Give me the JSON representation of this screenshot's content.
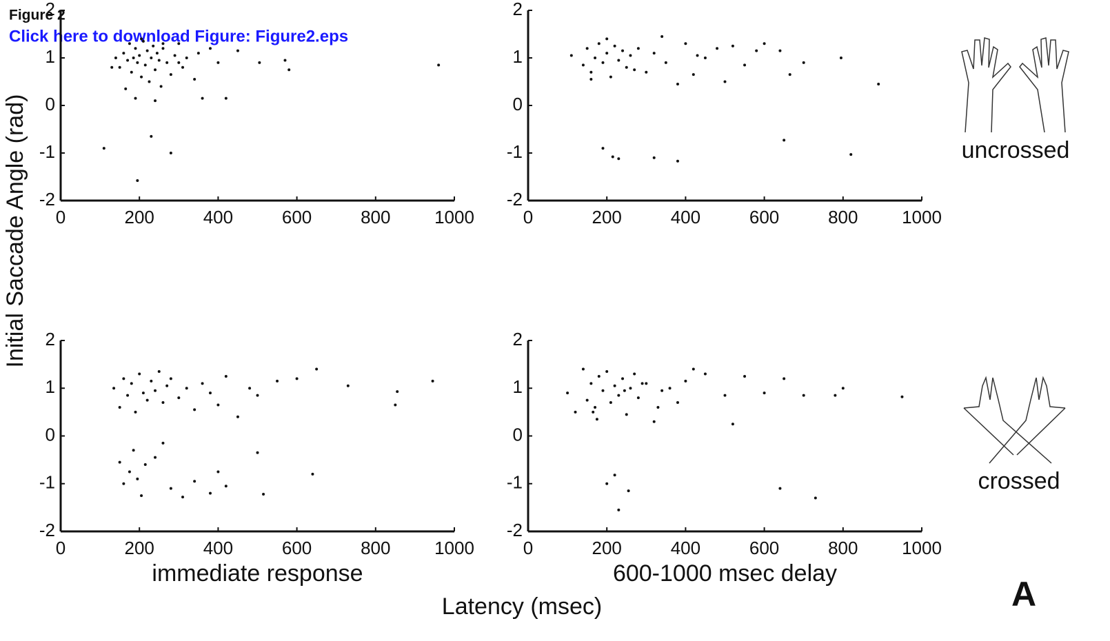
{
  "header": {
    "figure": "Figure 2",
    "link": "Click here to download Figure: Figure2.eps"
  },
  "ylabel": "Initial Saccade Angle (rad)",
  "xlabel": "Latency (msec)",
  "row_labels": [
    "uncrossed",
    "crossed"
  ],
  "panel_letter": "A",
  "chart_data": [
    {
      "type": "scatter",
      "color": "#111111",
      "xlim": [
        0,
        1000
      ],
      "ylim": [
        -2,
        2
      ],
      "xticks": [
        0,
        200,
        400,
        600,
        800,
        1000
      ],
      "yticks": [
        -2,
        -1,
        0,
        1,
        2
      ],
      "x": [
        150,
        160,
        170,
        175,
        180,
        185,
        190,
        195,
        200,
        205,
        210,
        215,
        220,
        225,
        230,
        235,
        240,
        245,
        250,
        255,
        260,
        270,
        280,
        290,
        300,
        310,
        320,
        340,
        360,
        380,
        400,
        420,
        450,
        505,
        570,
        580,
        960,
        110,
        195,
        230,
        280,
        240,
        190,
        130,
        140,
        165,
        205,
        260,
        300,
        350
      ],
      "values": [
        0.8,
        1.1,
        0.95,
        1.3,
        0.7,
        1.0,
        1.2,
        0.9,
        1.05,
        0.6,
        1.35,
        0.85,
        1.15,
        0.5,
        1.0,
        1.25,
        0.75,
        1.1,
        0.95,
        0.4,
        1.2,
        0.9,
        0.65,
        1.05,
        1.3,
        0.8,
        1.0,
        0.55,
        0.15,
        1.2,
        0.9,
        0.15,
        1.15,
        0.9,
        0.95,
        0.75,
        0.85,
        -0.9,
        -1.58,
        -0.65,
        -1.0,
        0.1,
        0.15,
        0.8,
        1.0,
        0.35,
        1.4,
        1.3,
        0.9,
        1.1
      ]
    },
    {
      "type": "scatter",
      "color": "#111111",
      "xlim": [
        0,
        1000
      ],
      "ylim": [
        -2,
        2
      ],
      "xticks": [
        0,
        200,
        400,
        600,
        800,
        1000
      ],
      "yticks": [
        -2,
        -1,
        0,
        1,
        2
      ],
      "x": [
        110,
        140,
        150,
        160,
        170,
        180,
        190,
        200,
        210,
        220,
        230,
        240,
        250,
        260,
        280,
        300,
        320,
        350,
        380,
        400,
        420,
        450,
        480,
        500,
        550,
        600,
        640,
        665,
        700,
        795,
        890,
        820,
        650,
        380,
        320,
        230,
        215,
        190,
        160,
        200,
        270,
        340,
        430,
        520,
        580
      ],
      "values": [
        1.05,
        0.85,
        1.2,
        0.7,
        1.0,
        1.3,
        0.9,
        1.1,
        0.6,
        1.25,
        0.95,
        1.15,
        0.8,
        1.05,
        1.2,
        0.7,
        1.1,
        0.9,
        0.45,
        1.3,
        0.65,
        1.0,
        1.2,
        0.5,
        0.85,
        1.3,
        1.15,
        0.65,
        0.9,
        1.0,
        0.45,
        -1.03,
        -0.73,
        -1.17,
        -1.1,
        -1.12,
        -1.08,
        -0.9,
        0.55,
        1.4,
        0.75,
        1.45,
        1.05,
        1.25,
        1.15
      ]
    },
    {
      "type": "scatter",
      "color": "#111111",
      "xlim": [
        0,
        1000
      ],
      "ylim": [
        -2,
        2
      ],
      "xticks": [
        0,
        200,
        400,
        600,
        800,
        1000
      ],
      "yticks": [
        -2,
        -1,
        0,
        1,
        2
      ],
      "subtitle": "immediate response",
      "x": [
        135,
        150,
        160,
        170,
        180,
        190,
        200,
        210,
        220,
        230,
        240,
        250,
        260,
        270,
        280,
        300,
        320,
        340,
        360,
        380,
        400,
        420,
        450,
        480,
        500,
        550,
        600,
        650,
        730,
        855,
        850,
        945,
        150,
        160,
        175,
        185,
        195,
        205,
        215,
        240,
        280,
        310,
        340,
        380,
        400,
        420,
        500,
        515,
        640,
        260
      ],
      "values": [
        1.0,
        0.6,
        1.2,
        0.85,
        1.1,
        0.5,
        1.3,
        0.9,
        0.75,
        1.15,
        0.95,
        1.35,
        0.7,
        1.05,
        1.2,
        0.8,
        1.0,
        0.55,
        1.1,
        0.9,
        0.65,
        1.25,
        0.4,
        1.0,
        0.85,
        1.15,
        1.2,
        1.4,
        1.05,
        0.93,
        0.65,
        1.15,
        -0.55,
        -1.0,
        -0.75,
        -0.3,
        -0.9,
        -1.25,
        -0.6,
        -0.45,
        -1.1,
        -1.28,
        -0.95,
        -1.2,
        -0.75,
        -1.05,
        -0.35,
        -1.22,
        -0.8,
        -0.15
      ]
    },
    {
      "type": "scatter",
      "color": "#111111",
      "xlim": [
        0,
        1000
      ],
      "ylim": [
        -2,
        2
      ],
      "xticks": [
        0,
        200,
        400,
        600,
        800,
        1000
      ],
      "yticks": [
        -2,
        -1,
        0,
        1,
        2
      ],
      "subtitle": "600-1000 msec delay",
      "x": [
        100,
        120,
        140,
        150,
        160,
        170,
        180,
        190,
        200,
        210,
        220,
        230,
        240,
        250,
        260,
        270,
        280,
        300,
        320,
        340,
        360,
        380,
        400,
        450,
        500,
        520,
        550,
        600,
        650,
        700,
        780,
        800,
        950,
        730,
        640,
        255,
        230,
        220,
        200,
        175,
        330,
        420,
        290,
        165,
        245
      ],
      "values": [
        0.9,
        0.5,
        1.4,
        0.75,
        1.1,
        0.6,
        1.25,
        0.95,
        1.35,
        0.7,
        1.05,
        0.85,
        1.2,
        0.45,
        1.0,
        1.3,
        0.8,
        1.1,
        0.3,
        0.95,
        1.0,
        0.7,
        1.15,
        1.3,
        0.85,
        0.25,
        1.25,
        0.9,
        1.2,
        0.85,
        0.85,
        1.0,
        0.82,
        -1.3,
        -1.1,
        -1.15,
        -1.55,
        -0.82,
        -1.0,
        0.35,
        0.6,
        1.4,
        1.1,
        0.5,
        0.95
      ]
    }
  ]
}
